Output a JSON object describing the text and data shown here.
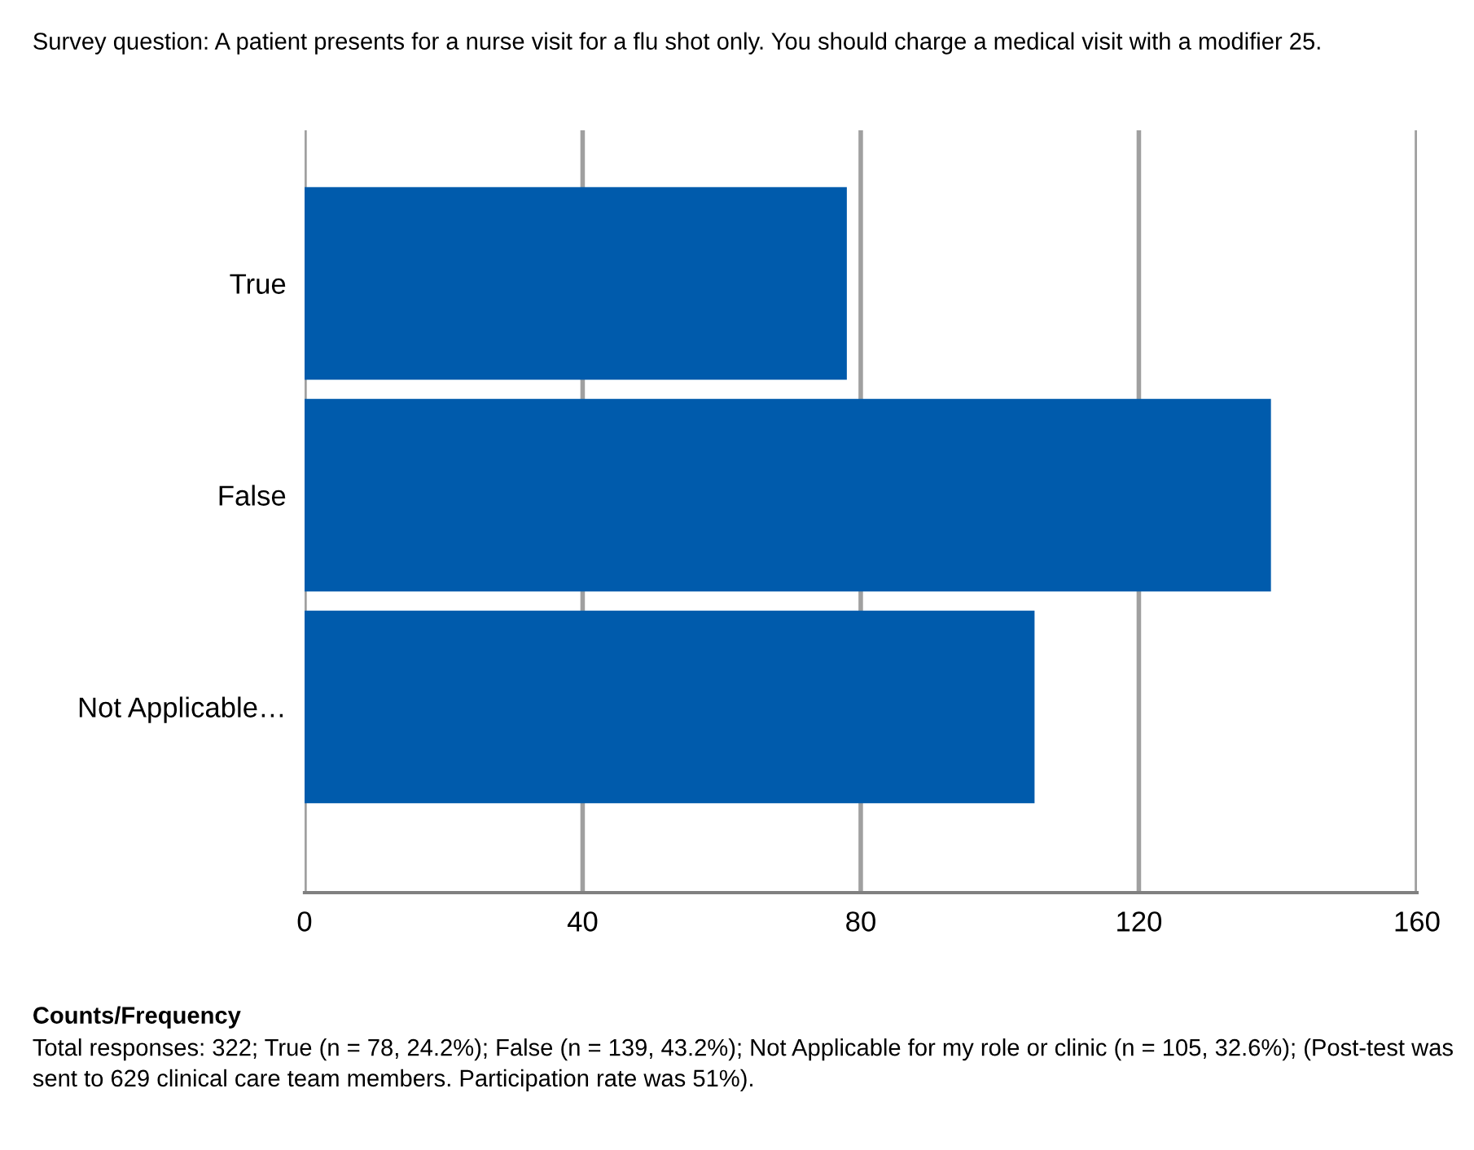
{
  "chart_data": {
    "type": "bar",
    "orientation": "horizontal",
    "title": "Survey question: A patient presents for a nurse visit for a flu shot only. You should charge a medical visit with a modifier 25.",
    "categories": [
      "True",
      "False",
      "Not Applicable…"
    ],
    "values": [
      78,
      139,
      105
    ],
    "color": "#005bac",
    "xlim": [
      0,
      160
    ],
    "xticks": [
      0,
      40,
      80,
      120,
      160
    ],
    "grid": "x",
    "annotations": [
      "Counts/Frequency",
      "Total responses: 322; True (n = 78, 24.2%); False (n = 139, 43.2%); Not Applicable for my role or clinic (n = 105, 32.6%); (Post-test was sent to 629 clinical care team members. Participation rate was 51%)."
    ]
  }
}
